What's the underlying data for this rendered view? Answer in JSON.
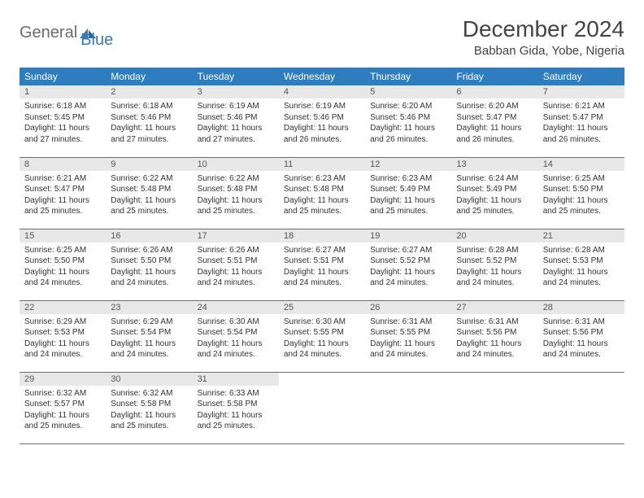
{
  "logo": {
    "part1": "General",
    "part2": "Blue"
  },
  "title": "December 2024",
  "location": "Babban Gida, Yobe, Nigeria",
  "colors": {
    "header_bg": "#2d7dc0",
    "header_text": "#ffffff",
    "daynum_bg": "#e8e8e8",
    "border": "#2d7dc0",
    "logo_gray": "#6b6b6b",
    "logo_blue": "#3a7ab8"
  },
  "weekdays": [
    "Sunday",
    "Monday",
    "Tuesday",
    "Wednesday",
    "Thursday",
    "Friday",
    "Saturday"
  ],
  "weeks": [
    [
      {
        "n": "1",
        "sr": "6:18 AM",
        "ss": "5:45 PM",
        "dl": "11 hours and 27 minutes."
      },
      {
        "n": "2",
        "sr": "6:18 AM",
        "ss": "5:46 PM",
        "dl": "11 hours and 27 minutes."
      },
      {
        "n": "3",
        "sr": "6:19 AM",
        "ss": "5:46 PM",
        "dl": "11 hours and 27 minutes."
      },
      {
        "n": "4",
        "sr": "6:19 AM",
        "ss": "5:46 PM",
        "dl": "11 hours and 26 minutes."
      },
      {
        "n": "5",
        "sr": "6:20 AM",
        "ss": "5:46 PM",
        "dl": "11 hours and 26 minutes."
      },
      {
        "n": "6",
        "sr": "6:20 AM",
        "ss": "5:47 PM",
        "dl": "11 hours and 26 minutes."
      },
      {
        "n": "7",
        "sr": "6:21 AM",
        "ss": "5:47 PM",
        "dl": "11 hours and 26 minutes."
      }
    ],
    [
      {
        "n": "8",
        "sr": "6:21 AM",
        "ss": "5:47 PM",
        "dl": "11 hours and 25 minutes."
      },
      {
        "n": "9",
        "sr": "6:22 AM",
        "ss": "5:48 PM",
        "dl": "11 hours and 25 minutes."
      },
      {
        "n": "10",
        "sr": "6:22 AM",
        "ss": "5:48 PM",
        "dl": "11 hours and 25 minutes."
      },
      {
        "n": "11",
        "sr": "6:23 AM",
        "ss": "5:48 PM",
        "dl": "11 hours and 25 minutes."
      },
      {
        "n": "12",
        "sr": "6:23 AM",
        "ss": "5:49 PM",
        "dl": "11 hours and 25 minutes."
      },
      {
        "n": "13",
        "sr": "6:24 AM",
        "ss": "5:49 PM",
        "dl": "11 hours and 25 minutes."
      },
      {
        "n": "14",
        "sr": "6:25 AM",
        "ss": "5:50 PM",
        "dl": "11 hours and 25 minutes."
      }
    ],
    [
      {
        "n": "15",
        "sr": "6:25 AM",
        "ss": "5:50 PM",
        "dl": "11 hours and 24 minutes."
      },
      {
        "n": "16",
        "sr": "6:26 AM",
        "ss": "5:50 PM",
        "dl": "11 hours and 24 minutes."
      },
      {
        "n": "17",
        "sr": "6:26 AM",
        "ss": "5:51 PM",
        "dl": "11 hours and 24 minutes."
      },
      {
        "n": "18",
        "sr": "6:27 AM",
        "ss": "5:51 PM",
        "dl": "11 hours and 24 minutes."
      },
      {
        "n": "19",
        "sr": "6:27 AM",
        "ss": "5:52 PM",
        "dl": "11 hours and 24 minutes."
      },
      {
        "n": "20",
        "sr": "6:28 AM",
        "ss": "5:52 PM",
        "dl": "11 hours and 24 minutes."
      },
      {
        "n": "21",
        "sr": "6:28 AM",
        "ss": "5:53 PM",
        "dl": "11 hours and 24 minutes."
      }
    ],
    [
      {
        "n": "22",
        "sr": "6:29 AM",
        "ss": "5:53 PM",
        "dl": "11 hours and 24 minutes."
      },
      {
        "n": "23",
        "sr": "6:29 AM",
        "ss": "5:54 PM",
        "dl": "11 hours and 24 minutes."
      },
      {
        "n": "24",
        "sr": "6:30 AM",
        "ss": "5:54 PM",
        "dl": "11 hours and 24 minutes."
      },
      {
        "n": "25",
        "sr": "6:30 AM",
        "ss": "5:55 PM",
        "dl": "11 hours and 24 minutes."
      },
      {
        "n": "26",
        "sr": "6:31 AM",
        "ss": "5:55 PM",
        "dl": "11 hours and 24 minutes."
      },
      {
        "n": "27",
        "sr": "6:31 AM",
        "ss": "5:56 PM",
        "dl": "11 hours and 24 minutes."
      },
      {
        "n": "28",
        "sr": "6:31 AM",
        "ss": "5:56 PM",
        "dl": "11 hours and 24 minutes."
      }
    ],
    [
      {
        "n": "29",
        "sr": "6:32 AM",
        "ss": "5:57 PM",
        "dl": "11 hours and 25 minutes."
      },
      {
        "n": "30",
        "sr": "6:32 AM",
        "ss": "5:58 PM",
        "dl": "11 hours and 25 minutes."
      },
      {
        "n": "31",
        "sr": "6:33 AM",
        "ss": "5:58 PM",
        "dl": "11 hours and 25 minutes."
      },
      null,
      null,
      null,
      null
    ]
  ],
  "labels": {
    "sunrise": "Sunrise:",
    "sunset": "Sunset:",
    "daylight": "Daylight:"
  }
}
